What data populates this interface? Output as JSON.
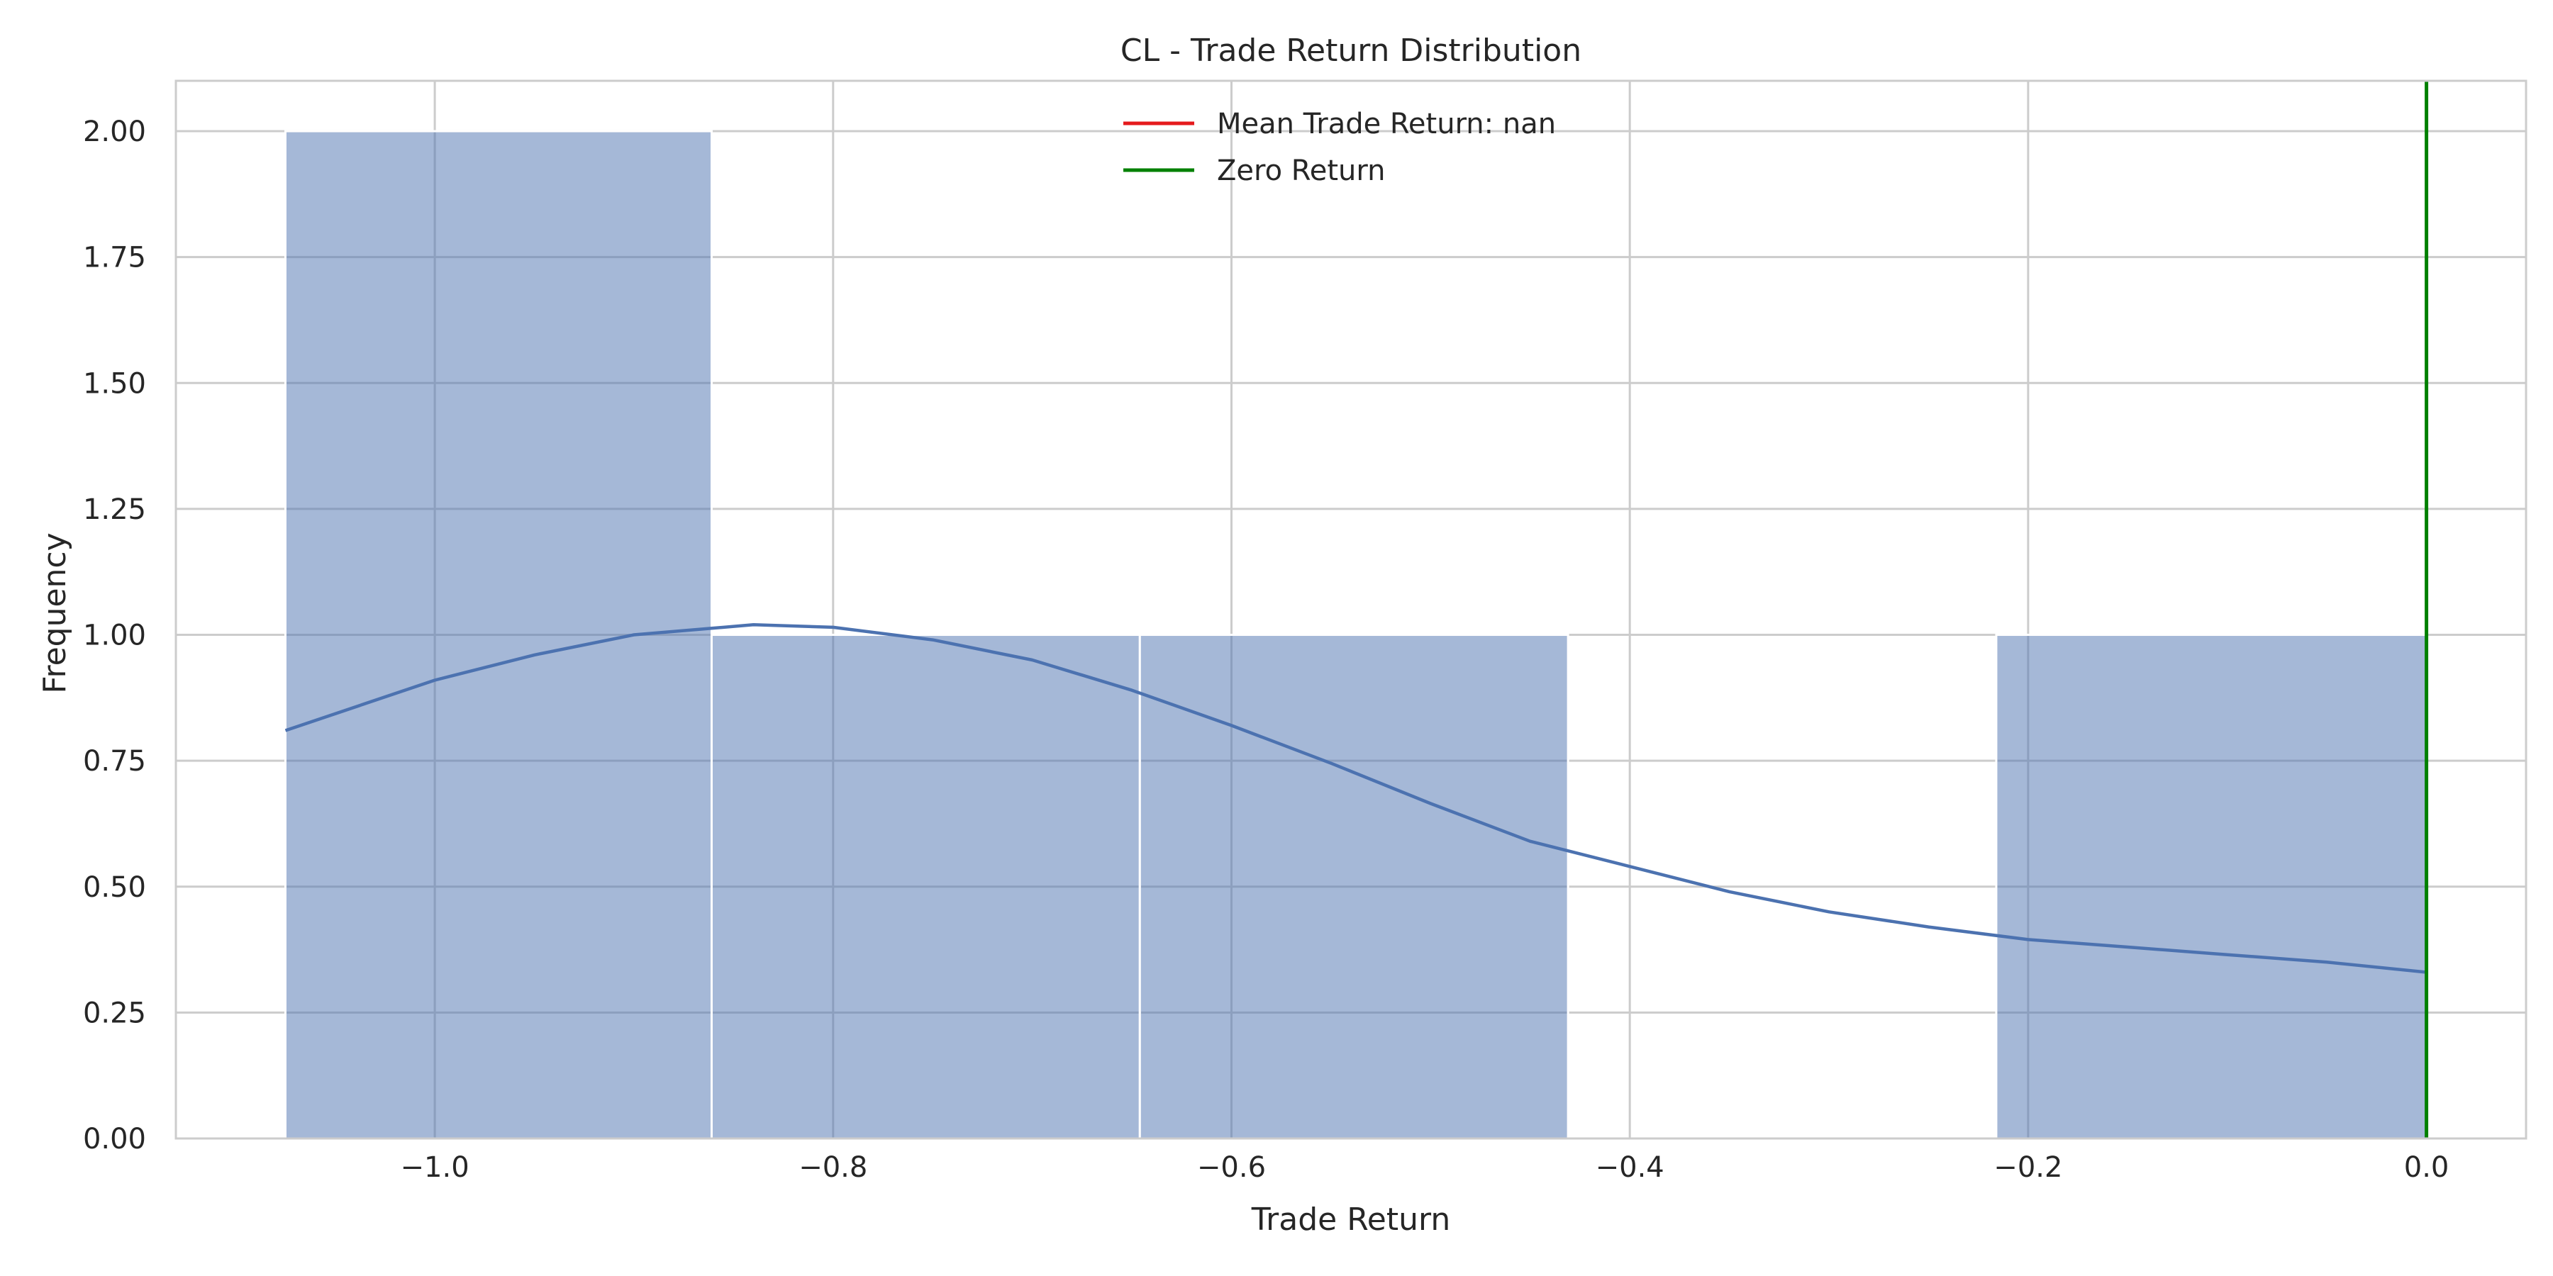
{
  "chart_data": {
    "type": "bar",
    "title": "CL - Trade Return Distribution",
    "xlabel": "Trade Return",
    "ylabel": "Frequency",
    "xlim": [
      -1.13,
      0.05
    ],
    "ylim": [
      0.0,
      2.1
    ],
    "x_ticks": [
      -1.0,
      -0.8,
      -0.6,
      -0.4,
      -0.2,
      0.0
    ],
    "x_tick_labels": [
      "−1.0",
      "−0.8",
      "−0.6",
      "−0.4",
      "−0.2",
      "0.0"
    ],
    "y_ticks": [
      0.0,
      0.25,
      0.5,
      0.75,
      1.0,
      1.25,
      1.5,
      1.75,
      2.0
    ],
    "y_tick_labels": [
      "0.00",
      "0.25",
      "0.50",
      "0.75",
      "1.00",
      "1.25",
      "1.50",
      "1.75",
      "2.00"
    ],
    "grid": true,
    "legend_position": "upper-center",
    "legend": [
      {
        "label": "Mean Trade Return: nan",
        "color": "#e41a1c"
      },
      {
        "label": "Zero Return",
        "color": "#008000"
      }
    ],
    "bins": [
      {
        "x0": -1.075,
        "x1": -0.861,
        "count": 2
      },
      {
        "x0": -0.861,
        "x1": -0.646,
        "count": 1
      },
      {
        "x0": -0.646,
        "x1": -0.431,
        "count": 1
      },
      {
        "x0": -0.431,
        "x1": -0.216,
        "count": 0
      },
      {
        "x0": -0.216,
        "x1": 0.0,
        "count": 1
      }
    ],
    "kde": {
      "x": [
        -1.075,
        -1.0,
        -0.95,
        -0.9,
        -0.84,
        -0.8,
        -0.75,
        -0.7,
        -0.65,
        -0.6,
        -0.55,
        -0.5,
        -0.45,
        -0.4,
        -0.35,
        -0.3,
        -0.25,
        -0.2,
        -0.15,
        -0.1,
        -0.05,
        0.0
      ],
      "y": [
        0.81,
        0.91,
        0.96,
        1.0,
        1.02,
        1.015,
        0.99,
        0.95,
        0.89,
        0.82,
        0.745,
        0.665,
        0.59,
        0.54,
        0.49,
        0.45,
        0.42,
        0.395,
        0.38,
        0.365,
        0.35,
        0.33
      ],
      "color": "#4c72b0"
    },
    "bar_color": "#4c72b0",
    "zero_line": {
      "x": 0.0,
      "color": "#008000"
    }
  }
}
